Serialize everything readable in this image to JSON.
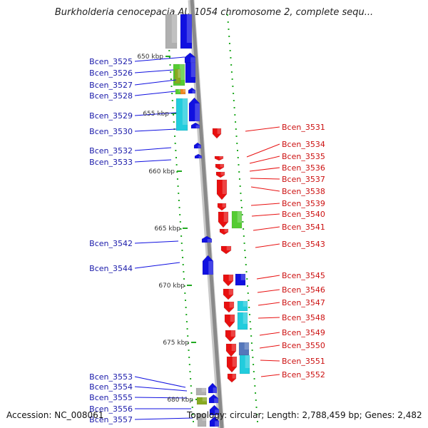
{
  "title": "Burkholderia cenocepacia AU 1054 chromosome 2, complete sequ...",
  "footer": {
    "accession": "Accession: NC_008061",
    "topology": "Topology: circular; Length: 2,788,459 bp; Genes: 2,482"
  },
  "colors": {
    "forward": "#1010e0",
    "reverse": "#e81010",
    "backbone": "#8a8a8a",
    "scale_tick": "#22aa22",
    "cyan": "#22ccdd",
    "green": "#55cc33",
    "olive": "#88aa22",
    "orange": "#ee8822",
    "steelblue": "#5577bb",
    "gray": "#b0b0b0"
  },
  "scale_labels": [
    "650 kbp",
    "655 kbp",
    "660 kbp",
    "665 kbp",
    "670 kbp",
    "675 kbp",
    "680 kbp"
  ],
  "left_genes": [
    "Bcen_3525",
    "Bcen_3526",
    "Bcen_3527",
    "Bcen_3528",
    "Bcen_3529",
    "Bcen_3530",
    "Bcen_3532",
    "Bcen_3533",
    "Bcen_3542",
    "Bcen_3544",
    "Bcen_3553",
    "Bcen_3554",
    "Bcen_3555",
    "Bcen_3556",
    "Bcen_3557"
  ],
  "right_genes": [
    "Bcen_3531",
    "Bcen_3534",
    "Bcen_3535",
    "Bcen_3536",
    "Bcen_3537",
    "Bcen_3538",
    "Bcen_3539",
    "Bcen_3540",
    "Bcen_3541",
    "Bcen_3543",
    "Bcen_3545",
    "Bcen_3546",
    "Bcen_3547",
    "Bcen_3548",
    "Bcen_3549",
    "Bcen_3550",
    "Bcen_3551",
    "Bcen_3552"
  ]
}
